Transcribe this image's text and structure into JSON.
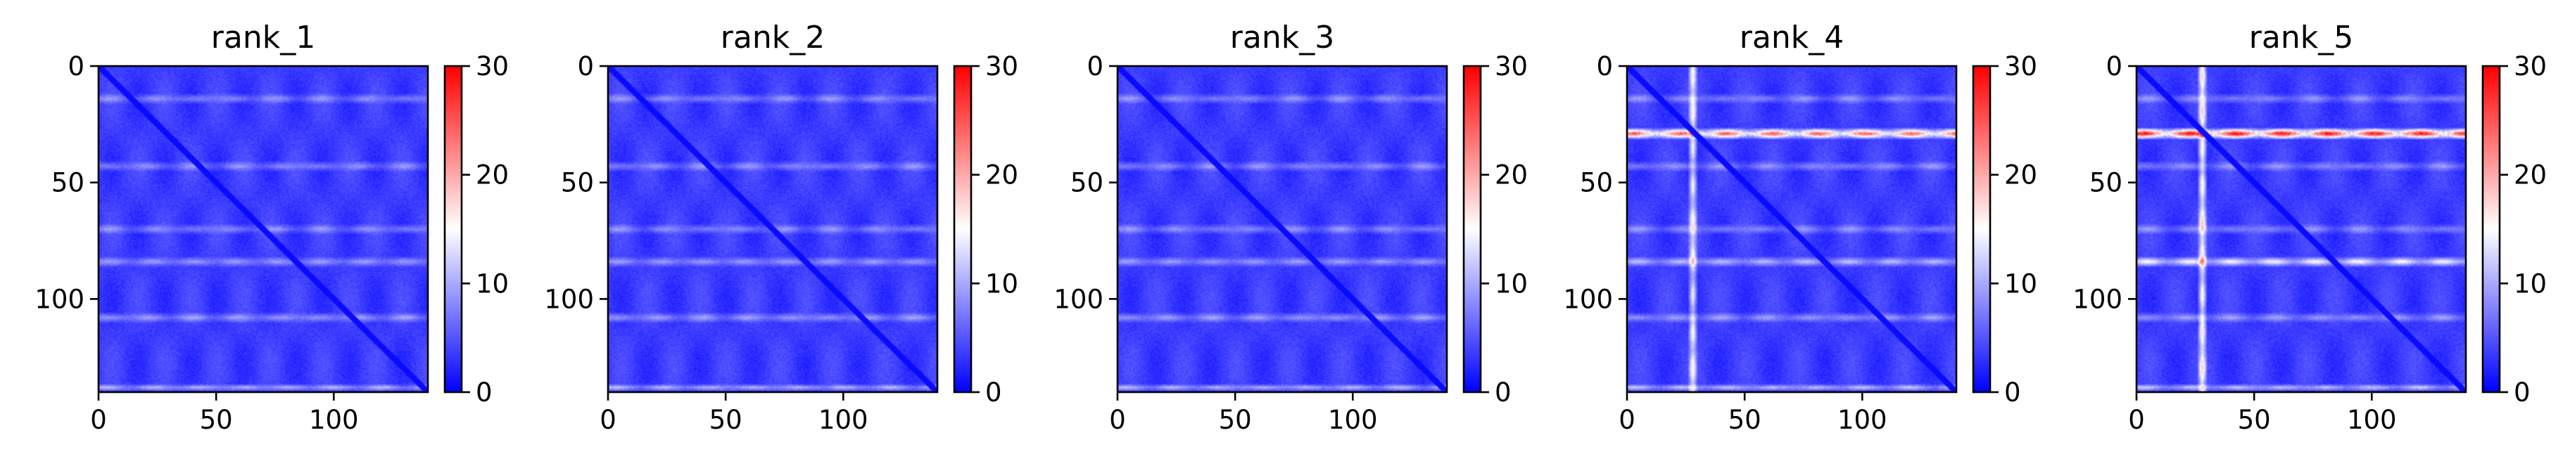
{
  "chart_data": [
    {
      "type": "heatmap",
      "title": "rank_1",
      "matrix_size": 140,
      "x_ticks": [
        "0",
        "50",
        "100"
      ],
      "y_ticks": [
        "0",
        "50",
        "100"
      ],
      "xlim": [
        0,
        140
      ],
      "ylim": [
        140,
        0
      ],
      "colorbar": {
        "min": 0,
        "max": 30,
        "ticks": [
          "0",
          "10",
          "20",
          "30"
        ],
        "colormap": "bwr"
      },
      "features": {
        "diagonal": true,
        "horizontal_bands": [
          [
            14,
            5
          ],
          [
            43,
            5
          ],
          [
            70,
            5
          ],
          [
            84,
            6
          ],
          [
            108,
            6
          ]
        ],
        "vertical_bands": [],
        "red_rows": [
          [
            138,
            8
          ]
        ]
      }
    },
    {
      "type": "heatmap",
      "title": "rank_2",
      "matrix_size": 140,
      "x_ticks": [
        "0",
        "50",
        "100"
      ],
      "y_ticks": [
        "0",
        "50",
        "100"
      ],
      "xlim": [
        0,
        140
      ],
      "ylim": [
        140,
        0
      ],
      "colorbar": {
        "min": 0,
        "max": 30,
        "ticks": [
          "0",
          "10",
          "20",
          "30"
        ],
        "colormap": "bwr"
      },
      "features": {
        "diagonal": true,
        "horizontal_bands": [
          [
            14,
            5
          ],
          [
            43,
            5
          ],
          [
            70,
            5
          ],
          [
            84,
            6
          ],
          [
            108,
            6
          ]
        ],
        "vertical_bands": [],
        "red_rows": [
          [
            138,
            8
          ]
        ]
      }
    },
    {
      "type": "heatmap",
      "title": "rank_3",
      "matrix_size": 140,
      "x_ticks": [
        "0",
        "50",
        "100"
      ],
      "y_ticks": [
        "0",
        "50",
        "100"
      ],
      "xlim": [
        0,
        140
      ],
      "ylim": [
        140,
        0
      ],
      "colorbar": {
        "min": 0,
        "max": 30,
        "ticks": [
          "0",
          "10",
          "20",
          "30"
        ],
        "colormap": "bwr"
      },
      "features": {
        "diagonal": true,
        "horizontal_bands": [
          [
            14,
            5
          ],
          [
            43,
            5
          ],
          [
            70,
            5
          ],
          [
            84,
            6
          ],
          [
            108,
            6
          ]
        ],
        "vertical_bands": [],
        "red_rows": [
          [
            138,
            8
          ]
        ]
      }
    },
    {
      "type": "heatmap",
      "title": "rank_4",
      "matrix_size": 140,
      "x_ticks": [
        "0",
        "50",
        "100"
      ],
      "y_ticks": [
        "0",
        "50",
        "100"
      ],
      "xlim": [
        0,
        140
      ],
      "ylim": [
        140,
        0
      ],
      "colorbar": {
        "min": 0,
        "max": 30,
        "ticks": [
          "0",
          "10",
          "20",
          "30"
        ],
        "colormap": "bwr"
      },
      "features": {
        "diagonal": true,
        "horizontal_bands": [
          [
            14,
            5
          ],
          [
            43,
            5
          ],
          [
            70,
            5
          ],
          [
            84,
            8
          ],
          [
            108,
            6
          ]
        ],
        "vertical_bands": [
          [
            28,
            13
          ]
        ],
        "red_rows": [
          [
            29,
            22
          ],
          [
            138,
            9
          ]
        ]
      }
    },
    {
      "type": "heatmap",
      "title": "rank_5",
      "matrix_size": 140,
      "x_ticks": [
        "0",
        "50",
        "100"
      ],
      "y_ticks": [
        "0",
        "50",
        "100"
      ],
      "xlim": [
        0,
        140
      ],
      "ylim": [
        140,
        0
      ],
      "colorbar": {
        "min": 0,
        "max": 30,
        "ticks": [
          "0",
          "10",
          "20",
          "30"
        ],
        "colormap": "bwr"
      },
      "features": {
        "diagonal": true,
        "horizontal_bands": [
          [
            14,
            5
          ],
          [
            43,
            5
          ],
          [
            70,
            5
          ],
          [
            84,
            12
          ],
          [
            108,
            6
          ]
        ],
        "vertical_bands": [
          [
            28,
            15
          ]
        ],
        "red_rows": [
          [
            29,
            27
          ],
          [
            138,
            9
          ]
        ]
      }
    }
  ]
}
